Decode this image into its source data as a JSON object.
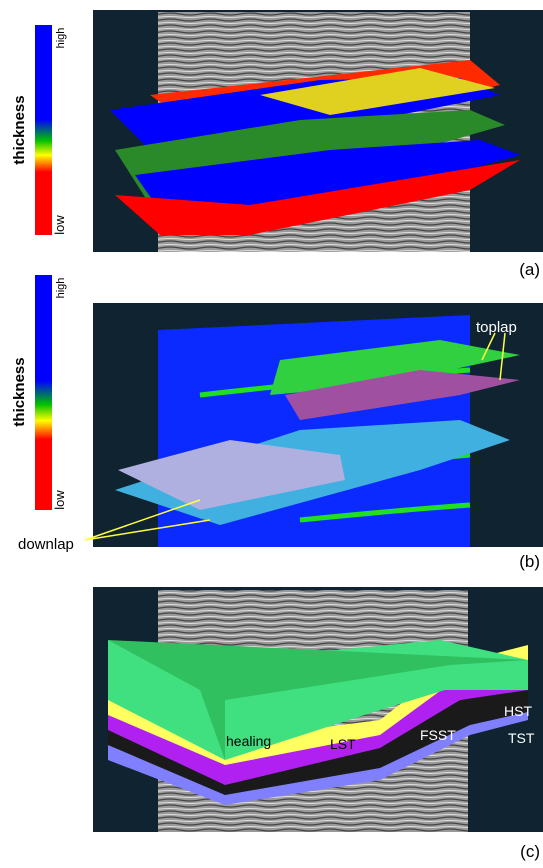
{
  "panels": [
    {
      "colorbar": {
        "title": "thickness",
        "high": "high",
        "low": "low"
      },
      "label": "(a)"
    },
    {
      "colorbar": {
        "title": "thickness",
        "high": "high",
        "low": "low"
      },
      "label": "(b)",
      "annotations": [
        "toplap",
        "downlap"
      ]
    },
    {
      "label": "(c)",
      "annotations": [
        "healing",
        "LST",
        "FSST",
        "HST",
        "TST"
      ]
    }
  ]
}
